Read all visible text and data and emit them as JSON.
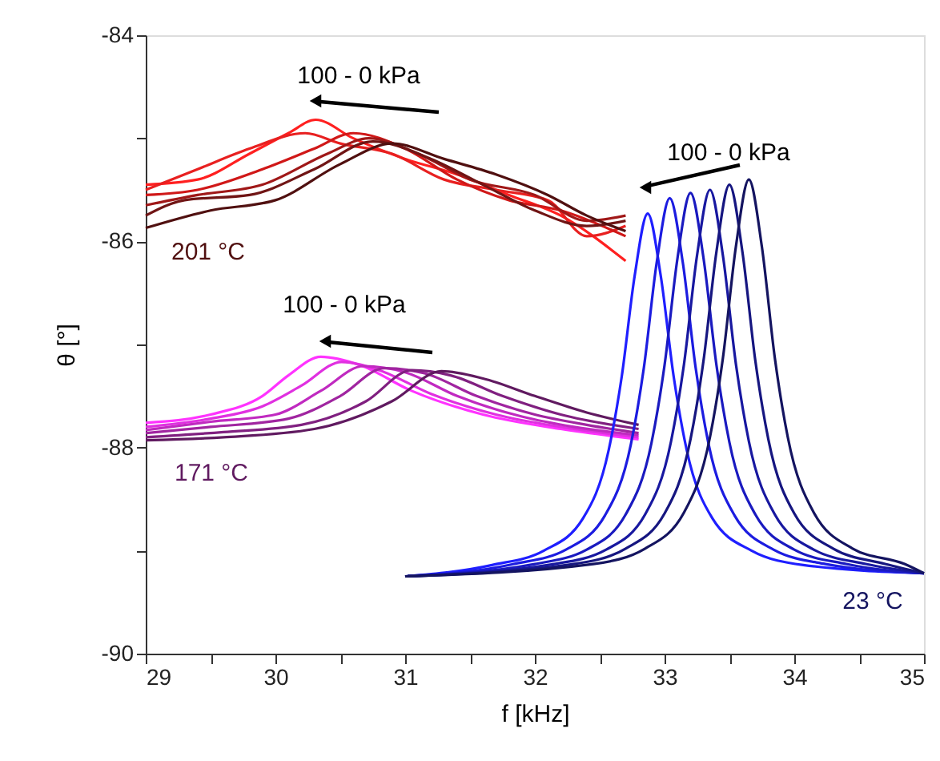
{
  "chart_data": {
    "type": "line",
    "xlabel": "f [kHz]",
    "ylabel": "θ [°]",
    "xlim": [
      29,
      35
    ],
    "ylim": [
      -90,
      -84
    ],
    "xticks": [
      29,
      {
        "value": 29.5,
        "label": null
      },
      30,
      {
        "value": 30.5,
        "label": null
      },
      31,
      {
        "value": 31.5,
        "label": null
      },
      32,
      {
        "value": 32.5,
        "label": null
      },
      33,
      {
        "value": 33.5,
        "label": null
      },
      34,
      {
        "value": 34.5,
        "label": null
      },
      35
    ],
    "yticks": [
      -90,
      {
        "value": -89,
        "label": null
      },
      -88,
      {
        "value": -87,
        "label": null
      },
      -86,
      {
        "value": -85,
        "label": null
      },
      -84
    ],
    "grid": false,
    "marker": "none",
    "line_style": "solid",
    "annotations": [
      "100 - 0 kPa",
      "100 - 0 kPa",
      "100 - 0 kPa",
      "201 °C",
      "171 °C",
      "23 °C"
    ],
    "series": [
      {
        "color": "#ff2020",
        "x": [
          29.0,
          29.4,
          29.8,
          30.1,
          30.31,
          30.6,
          31.0,
          31.4,
          31.8,
          32.2,
          32.7
        ],
        "values": [
          -85.45,
          -85.4,
          -85.15,
          -84.95,
          -84.82,
          -85.0,
          -85.2,
          -85.35,
          -85.55,
          -85.75,
          -86.19
        ]
      },
      {
        "color": "#e82020",
        "x": [
          29.0,
          29.4,
          29.8,
          30.23,
          30.5,
          30.9,
          31.3,
          31.7,
          32.1,
          32.4,
          32.7
        ],
        "values": [
          -85.5,
          -85.3,
          -85.1,
          -84.95,
          -85.05,
          -85.15,
          -85.4,
          -85.5,
          -85.6,
          -85.95,
          -85.85
        ]
      },
      {
        "color": "#d01818",
        "x": [
          29.0,
          29.4,
          29.9,
          30.3,
          30.6,
          31.0,
          31.4,
          31.8,
          32.2,
          32.7
        ],
        "values": [
          -85.55,
          -85.5,
          -85.3,
          -85.1,
          -84.95,
          -85.1,
          -85.4,
          -85.6,
          -85.7,
          -85.95
        ]
      },
      {
        "color": "#a01818",
        "x": [
          29.0,
          29.4,
          29.9,
          30.4,
          30.72,
          31.1,
          31.5,
          32.0,
          32.4,
          32.7
        ],
        "values": [
          -85.65,
          -85.55,
          -85.45,
          -85.15,
          -85.0,
          -85.15,
          -85.4,
          -85.55,
          -85.8,
          -85.75
        ]
      },
      {
        "color": "#701515",
        "x": [
          29.0,
          29.3,
          29.8,
          30.3,
          30.75,
          31.2,
          31.6,
          32.0,
          32.4,
          32.7
        ],
        "values": [
          -85.75,
          -85.6,
          -85.55,
          -85.3,
          -85.03,
          -85.2,
          -85.45,
          -85.7,
          -85.85,
          -85.8
        ]
      },
      {
        "color": "#501010",
        "x": [
          29.0,
          29.5,
          30.0,
          30.5,
          30.9,
          31.3,
          31.7,
          32.1,
          32.4,
          32.7
        ],
        "values": [
          -85.87,
          -85.7,
          -85.6,
          -85.25,
          -85.05,
          -85.2,
          -85.35,
          -85.55,
          -85.75,
          -85.9
        ]
      },
      {
        "color": "#ff33ff",
        "x": [
          29.0,
          29.5,
          29.9,
          30.1,
          30.35,
          30.65,
          31.05,
          31.6,
          32.2,
          32.8
        ],
        "values": [
          -87.76,
          -87.68,
          -87.5,
          -87.3,
          -87.12,
          -87.2,
          -87.45,
          -87.68,
          -87.82,
          -87.92
        ]
      },
      {
        "color": "#e030e0",
        "x": [
          29.0,
          29.5,
          29.9,
          30.2,
          30.51,
          30.8,
          31.2,
          31.7,
          32.2,
          32.8
        ],
        "values": [
          -87.8,
          -87.72,
          -87.6,
          -87.4,
          -87.17,
          -87.25,
          -87.48,
          -87.68,
          -87.8,
          -87.9
        ]
      },
      {
        "color": "#c02ac0",
        "x": [
          29.0,
          29.5,
          30.0,
          30.35,
          30.68,
          31.0,
          31.4,
          31.9,
          32.3,
          32.8
        ],
        "values": [
          -87.83,
          -87.75,
          -87.68,
          -87.45,
          -87.21,
          -87.27,
          -87.5,
          -87.7,
          -87.8,
          -87.88
        ]
      },
      {
        "color": "#a025a0",
        "x": [
          29.0,
          29.5,
          30.1,
          30.5,
          30.84,
          31.15,
          31.55,
          32.0,
          32.4,
          32.8
        ],
        "values": [
          -87.86,
          -87.8,
          -87.72,
          -87.5,
          -87.23,
          -87.28,
          -87.5,
          -87.68,
          -87.78,
          -87.86
        ]
      },
      {
        "color": "#802080",
        "x": [
          29.0,
          29.6,
          30.2,
          30.7,
          31.05,
          31.35,
          31.75,
          32.2,
          32.8
        ],
        "values": [
          -87.9,
          -87.85,
          -87.78,
          -87.55,
          -87.25,
          -87.3,
          -87.5,
          -87.68,
          -87.82
        ]
      },
      {
        "color": "#601a60",
        "x": [
          29.0,
          29.6,
          30.3,
          30.9,
          31.28,
          31.6,
          32.0,
          32.4,
          32.8
        ],
        "values": [
          -87.93,
          -87.9,
          -87.82,
          -87.55,
          -87.26,
          -87.33,
          -87.5,
          -87.66,
          -87.78
        ]
      },
      {
        "color": "#1f1fff",
        "x": [
          31.0,
          31.67,
          32.07,
          32.37,
          32.57,
          32.67,
          32.77,
          32.87,
          32.97,
          33.07,
          33.17,
          33.37,
          33.67,
          34.07,
          35.0
        ],
        "values": [
          -89.25,
          -89.14,
          -89.0,
          -88.69,
          -88.02,
          -87.31,
          -86.33,
          -85.73,
          -86.33,
          -87.31,
          -88.02,
          -88.69,
          -89.0,
          -89.14,
          -89.22
        ]
      },
      {
        "color": "#1c1ce0",
        "x": [
          31.0,
          31.84,
          32.24,
          32.54,
          32.74,
          32.84,
          32.94,
          33.04,
          33.14,
          33.24,
          33.34,
          33.54,
          33.84,
          34.24,
          35.0
        ],
        "values": [
          -89.25,
          -89.13,
          -88.99,
          -88.66,
          -87.97,
          -87.23,
          -86.2,
          -85.58,
          -86.2,
          -87.23,
          -87.97,
          -88.66,
          -88.99,
          -89.13,
          -89.22
        ]
      },
      {
        "color": "#1a1ac0",
        "x": [
          31.0,
          32.0,
          32.4,
          32.7,
          32.9,
          33.0,
          33.1,
          33.2,
          33.3,
          33.4,
          33.5,
          33.7,
          34.0,
          34.4,
          35.0
        ],
        "values": [
          -89.25,
          -89.13,
          -88.99,
          -88.65,
          -87.95,
          -87.2,
          -86.16,
          -85.53,
          -86.16,
          -87.2,
          -87.95,
          -88.65,
          -88.99,
          -89.13,
          -89.22
        ]
      },
      {
        "color": "#1818a0",
        "x": [
          31.0,
          32.15,
          32.55,
          32.85,
          33.05,
          33.15,
          33.25,
          33.35,
          33.45,
          33.55,
          33.65,
          33.85,
          34.15,
          34.55,
          35.0
        ],
        "values": [
          -89.25,
          -89.13,
          -88.99,
          -88.65,
          -87.94,
          -87.19,
          -86.14,
          -85.5,
          -86.14,
          -87.19,
          -87.94,
          -88.65,
          -88.99,
          -89.13,
          -89.22
        ]
      },
      {
        "color": "#161680",
        "x": [
          31.0,
          32.3,
          32.7,
          33.0,
          33.2,
          33.3,
          33.4,
          33.5,
          33.6,
          33.7,
          33.8,
          34.0,
          34.3,
          34.7,
          35.0
        ],
        "values": [
          -89.25,
          -89.13,
          -88.98,
          -88.64,
          -87.92,
          -87.16,
          -86.1,
          -85.45,
          -86.1,
          -87.16,
          -87.92,
          -88.64,
          -88.98,
          -89.13,
          -89.22
        ]
      },
      {
        "color": "#141460",
        "x": [
          31.0,
          32.45,
          32.85,
          33.15,
          33.35,
          33.45,
          33.55,
          33.65,
          33.75,
          33.85,
          33.95,
          34.15,
          34.45,
          34.85,
          35.0
        ],
        "values": [
          -89.25,
          -89.13,
          -88.98,
          -88.63,
          -87.9,
          -87.13,
          -86.05,
          -85.4,
          -86.05,
          -87.13,
          -87.9,
          -88.63,
          -88.98,
          -89.13,
          -89.22
        ]
      }
    ]
  }
}
